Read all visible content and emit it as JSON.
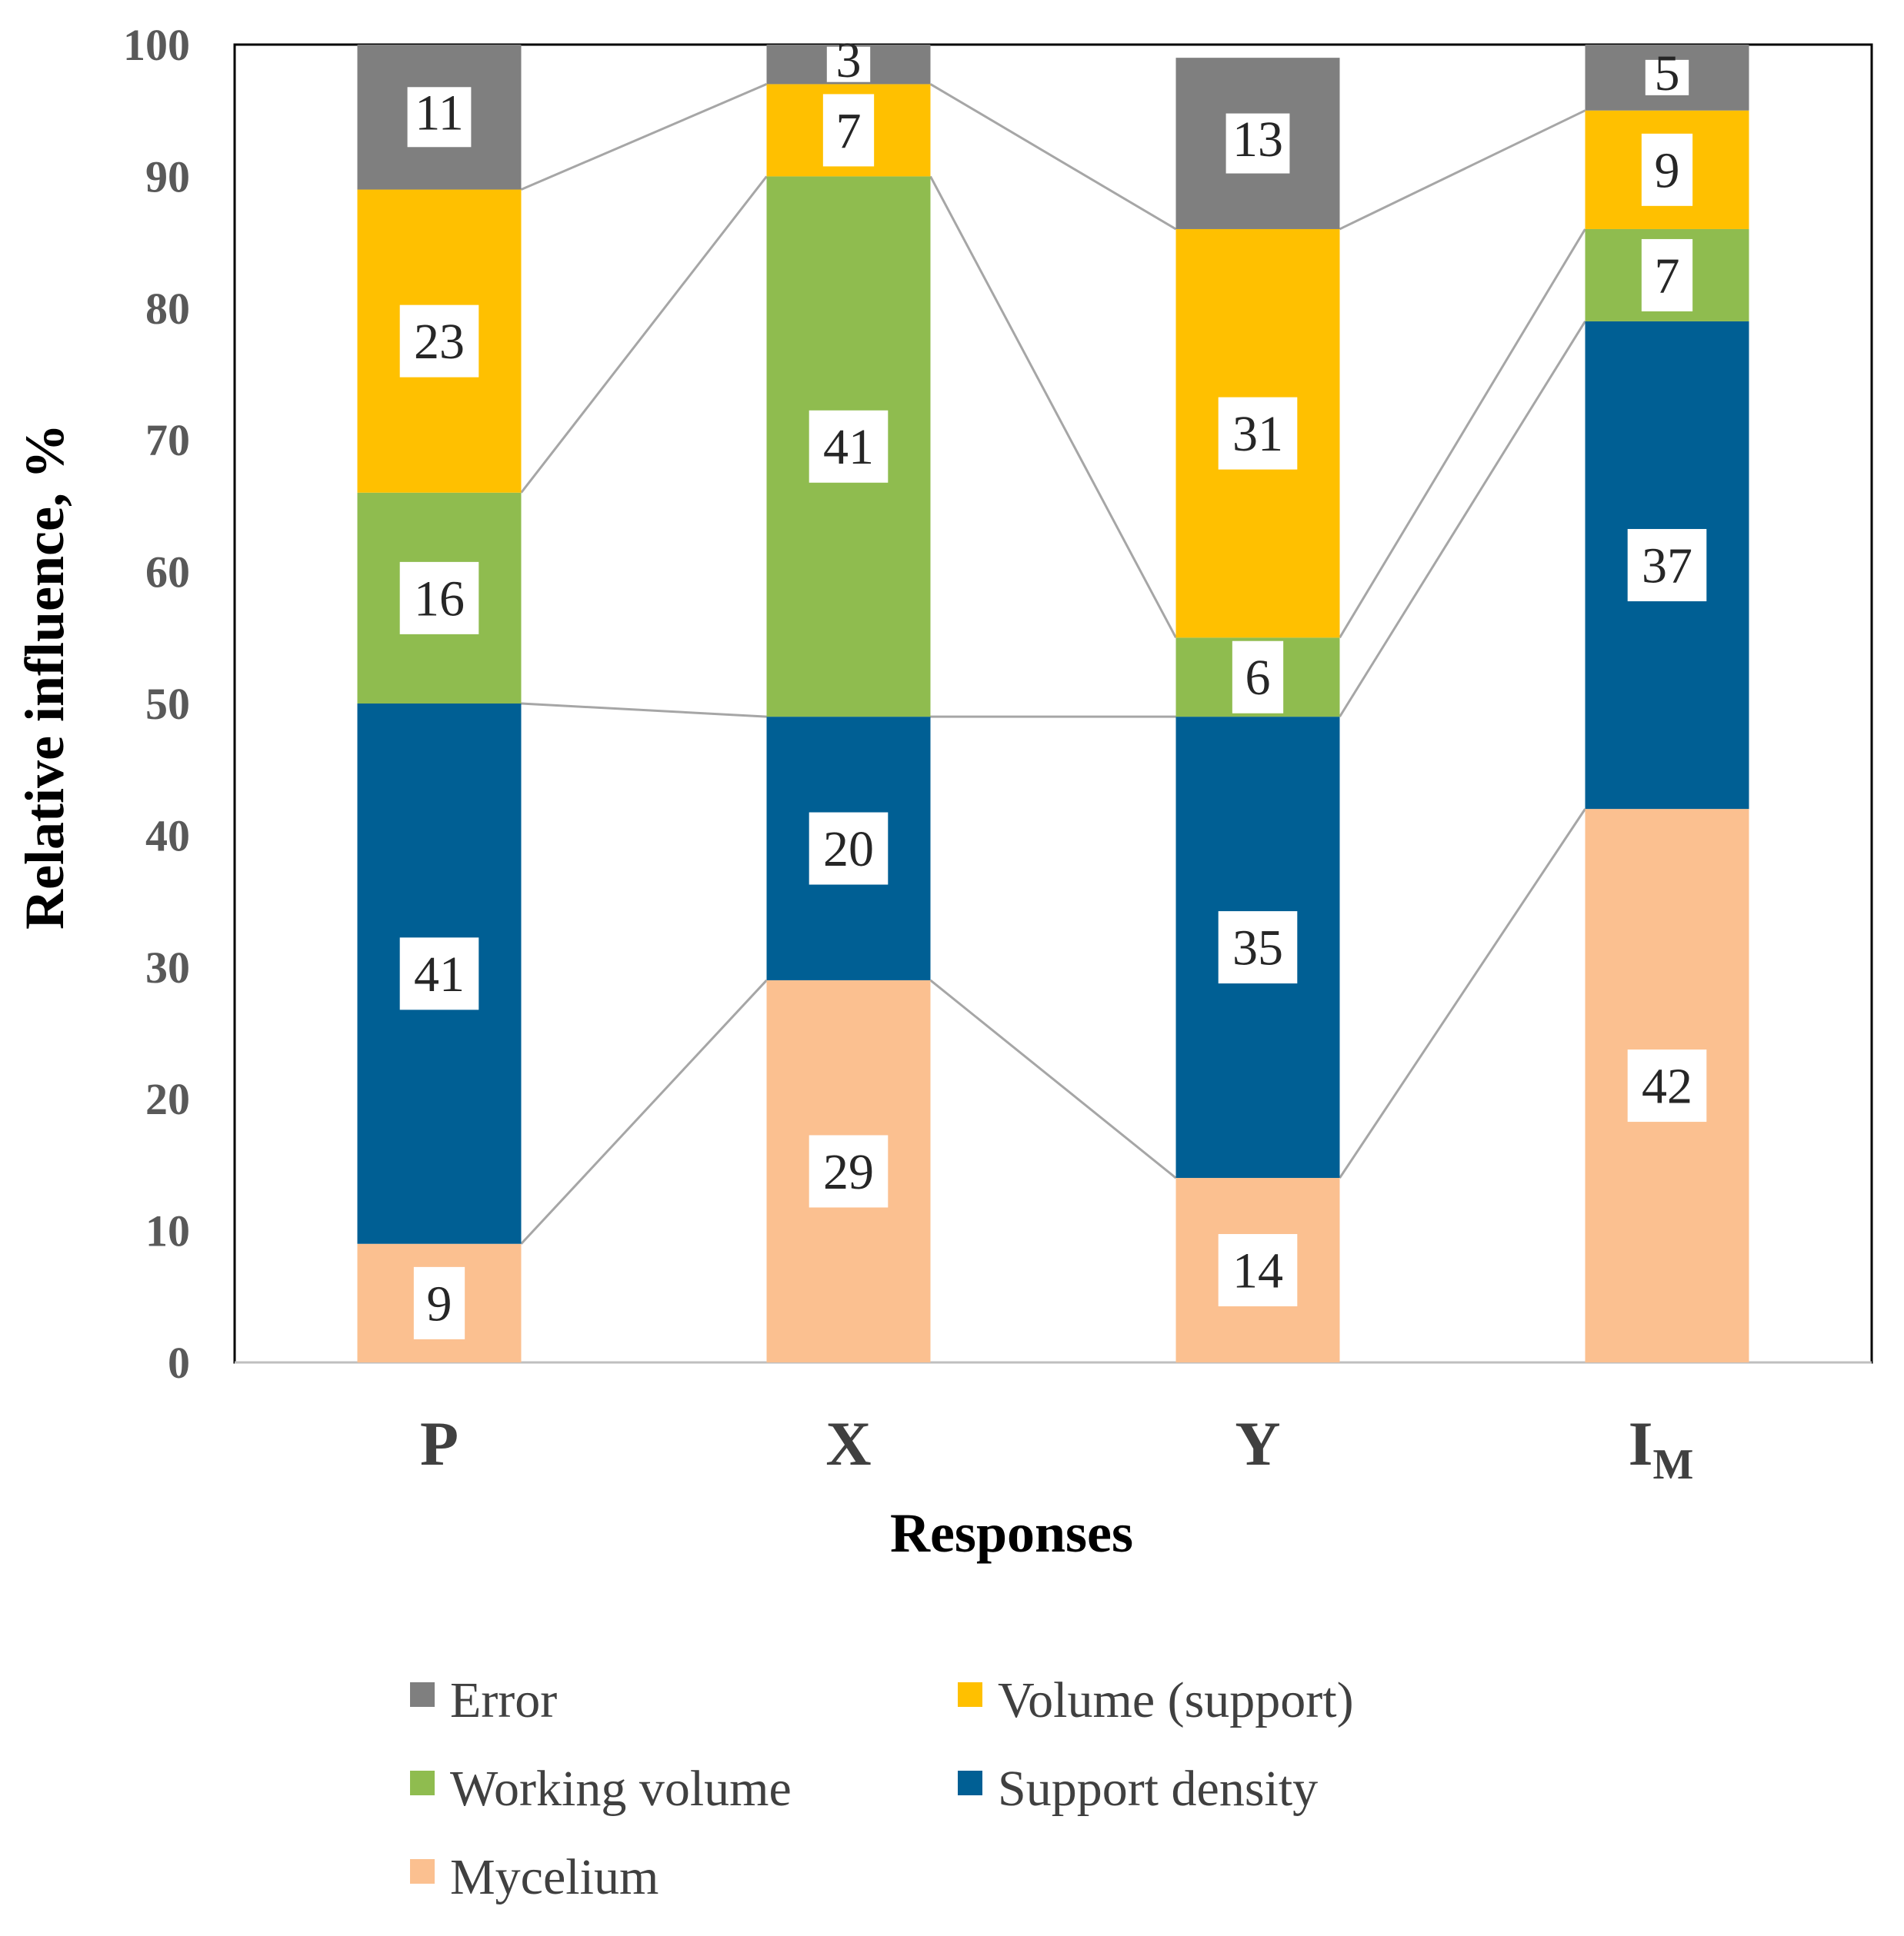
{
  "chart_data": {
    "type": "bar",
    "stacked": true,
    "categories": [
      "P",
      "X",
      "Y",
      "I"
    ],
    "category_subscripts": [
      "",
      "",
      "",
      "M"
    ],
    "xlabel": "Responses",
    "ylabel": "Relative influence, %",
    "ylim": [
      0,
      100
    ],
    "yticks": [
      "0",
      "10",
      "20",
      "30",
      "40",
      "50",
      "60",
      "70",
      "80",
      "90",
      "100"
    ],
    "grid": false,
    "series_lines": true,
    "legend_position": "bottom",
    "series": [
      {
        "name": "Mycelium",
        "color": "#FBC090",
        "values": [
          9,
          29,
          14,
          42
        ],
        "labels": [
          "9",
          "29",
          "14",
          "42"
        ]
      },
      {
        "name": "Support density",
        "color": "#005F94",
        "values": [
          41,
          20,
          35,
          37
        ],
        "labels": [
          "41",
          "20",
          "35",
          "37"
        ]
      },
      {
        "name": "Working volume",
        "color": "#8FBC4F",
        "values": [
          16,
          41,
          6,
          7
        ],
        "labels": [
          "16",
          "41",
          "6",
          "7"
        ]
      },
      {
        "name": "Volume (support)",
        "color": "#FFC000",
        "values": [
          23,
          7,
          31,
          9
        ],
        "labels": [
          "23",
          "7",
          "31",
          "9"
        ]
      },
      {
        "name": "Error",
        "color": "#7F7F7F",
        "values": [
          11,
          3,
          13,
          5
        ],
        "labels": [
          "11",
          "3",
          "13",
          "5"
        ]
      }
    ],
    "legend_order": [
      "Error",
      "Volume (support)",
      "Working volume",
      "Support density",
      "Mycelium"
    ]
  }
}
